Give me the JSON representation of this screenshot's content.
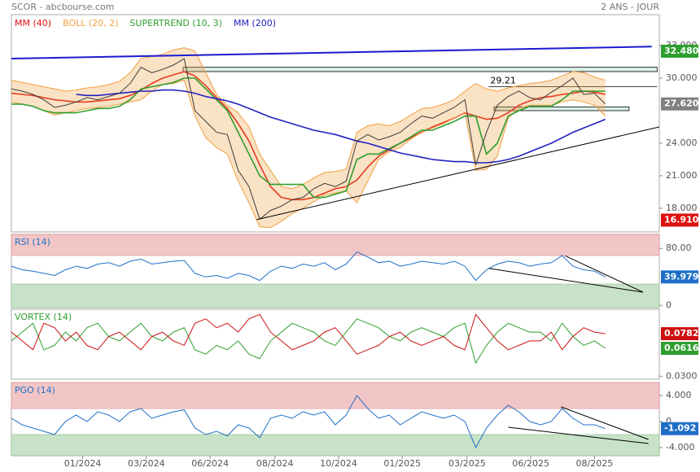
{
  "header": {
    "title": "SCOR - abcbourse.com",
    "period": "2 ANS - JOUR"
  },
  "chart_data": [
    {
      "type": "line",
      "xlim": [
        0,
        60
      ],
      "ylim": [
        15.82,
        35.85
      ],
      "x": [
        0,
        1,
        2,
        3,
        4,
        5,
        6,
        7,
        8,
        9,
        10,
        11,
        12,
        13,
        14,
        15,
        16,
        17,
        18,
        19,
        20,
        21,
        22,
        23,
        24,
        25,
        26,
        27,
        28,
        29,
        30,
        31,
        32,
        33,
        34,
        35,
        36,
        37,
        38,
        39,
        40,
        41,
        42,
        43,
        44,
        45,
        46,
        47,
        48,
        49,
        50,
        51,
        52,
        53,
        54,
        55
      ],
      "values": [
        29.0,
        28.8,
        28.5,
        28.0,
        27.3,
        27.5,
        27.8,
        28.2,
        28.0,
        28.3,
        28.6,
        29.5,
        31.0,
        30.5,
        30.8,
        31.2,
        31.8,
        27.0,
        26.0,
        25.0,
        24.8,
        21.5,
        20.0,
        17.0,
        17.8,
        18.2,
        18.8,
        19.0,
        19.8,
        20.3,
        20.0,
        20.5,
        24.2,
        24.8,
        24.3,
        24.6,
        25.0,
        25.8,
        26.5,
        26.3,
        26.8,
        27.3,
        28.0,
        22.0,
        25.0,
        27.5,
        28.3,
        28.8,
        28.2,
        28.0,
        28.7,
        29.3,
        30.0,
        28.5,
        28.6,
        27.62
      ],
      "color": "#3a3a3a",
      "series": [
        {
          "name": "MM (40)",
          "color": "#e01010",
          "values": [
            28.6,
            28.5,
            28.4,
            28.2,
            28.0,
            27.9,
            27.8,
            27.8,
            27.9,
            28.0,
            28.1,
            28.4,
            28.9,
            29.5,
            30.0,
            30.3,
            30.6,
            30.2,
            29.3,
            28.2,
            27.2,
            25.8,
            24.2,
            22.0,
            20.0,
            19.0,
            18.8,
            18.8,
            19.0,
            19.4,
            19.8,
            20.0,
            20.6,
            21.8,
            22.8,
            23.4,
            24.0,
            24.5,
            25.0,
            25.5,
            25.9,
            26.3,
            26.8,
            26.5,
            26.2,
            26.3,
            26.8,
            27.5,
            27.9,
            28.2,
            28.3,
            28.5,
            28.6,
            28.8,
            28.7,
            28.5
          ]
        },
        {
          "name": "BOLL (20, 2)",
          "color": "#f0a040",
          "upper": [
            29.8,
            29.6,
            29.4,
            29.2,
            29.0,
            28.8,
            28.9,
            29.1,
            29.2,
            29.4,
            29.7,
            30.5,
            31.8,
            32.0,
            32.2,
            32.6,
            32.8,
            32.5,
            30.5,
            28.5,
            27.5,
            26.8,
            25.5,
            23.0,
            21.5,
            20.0,
            19.8,
            20.2,
            20.8,
            21.3,
            21.4,
            21.6,
            25.0,
            25.6,
            25.8,
            25.6,
            26.0,
            26.6,
            27.2,
            27.3,
            27.6,
            28.0,
            28.8,
            29.5,
            29.0,
            28.8,
            29.1,
            29.3,
            29.5,
            29.6,
            29.8,
            30.2,
            30.6,
            30.5,
            30.1,
            29.8
          ],
          "lower": [
            27.8,
            27.6,
            27.4,
            27.0,
            26.6,
            26.8,
            27.0,
            27.2,
            27.3,
            27.4,
            27.6,
            27.8,
            28.0,
            28.8,
            29.4,
            29.5,
            29.8,
            26.5,
            24.5,
            23.6,
            23.0,
            20.5,
            18.5,
            16.3,
            16.2,
            16.8,
            17.5,
            18.0,
            18.6,
            19.2,
            19.4,
            19.6,
            18.5,
            20.5,
            22.5,
            23.2,
            23.6,
            24.4,
            25.0,
            25.4,
            25.8,
            26.3,
            26.8,
            21.5,
            21.6,
            22.8,
            26.3,
            27.2,
            27.5,
            27.5,
            27.5,
            27.8,
            28.0,
            27.8,
            27.5,
            26.5
          ]
        },
        {
          "name": "SUPERTREND (10, 3)",
          "color": "#2e9e2e",
          "values": [
            27.6,
            27.6,
            27.4,
            27.0,
            26.8,
            26.8,
            26.8,
            27.0,
            27.2,
            27.2,
            27.4,
            28.0,
            29.0,
            29.2,
            29.4,
            29.6,
            30.0,
            30.0,
            29.0,
            28.0,
            27.0,
            25.0,
            23.0,
            21.0,
            20.2,
            20.2,
            20.2,
            20.2,
            19.0,
            19.0,
            19.3,
            19.6,
            22.5,
            23.0,
            23.0,
            23.5,
            24.0,
            24.6,
            25.2,
            25.2,
            25.6,
            26.0,
            26.5,
            26.5,
            23.0,
            24.0,
            26.5,
            27.0,
            27.4,
            27.4,
            27.4,
            28.0,
            28.8,
            28.8,
            28.8,
            28.8
          ]
        },
        {
          "name": "MM (200)",
          "color": "#2020c0",
          "values": [
            null,
            null,
            null,
            null,
            null,
            null,
            28.5,
            28.4,
            28.4,
            28.5,
            28.6,
            28.7,
            28.8,
            28.8,
            28.9,
            28.9,
            28.8,
            28.6,
            28.3,
            28.1,
            27.9,
            27.6,
            27.2,
            26.8,
            26.4,
            26.1,
            25.8,
            25.5,
            25.2,
            25.0,
            24.8,
            24.5,
            24.2,
            24.0,
            23.7,
            23.4,
            23.1,
            22.9,
            22.7,
            22.5,
            22.4,
            22.3,
            22.3,
            22.2,
            22.2,
            22.3,
            22.5,
            22.8,
            23.2,
            23.6,
            24.0,
            24.5,
            25.0,
            25.4,
            25.8,
            26.2
          ]
        }
      ],
      "yticks": [
        {
          "value": 33,
          "label": "33.000"
        },
        {
          "value": 30,
          "label": "30.000"
        },
        {
          "value": 24,
          "label": "24.000"
        },
        {
          "value": 21,
          "label": "21.000"
        },
        {
          "value": 18,
          "label": "18.000"
        }
      ],
      "zones": [
        {
          "from": 30.6,
          "to": 31.0,
          "x": [
            15.9,
            59.8
          ],
          "color": "#d8f0e8"
        },
        {
          "from": 27.0,
          "to": 27.35,
          "x": [
            44.7,
            57.2
          ],
          "color": "#d8f0e8"
        }
      ],
      "levels": [
        {
          "value": 29.21,
          "x": [
            44.2,
            59.8
          ]
        }
      ],
      "lines": [
        {
          "x": [
            0,
            59.3
          ],
          "y": [
            31.8,
            32.9
          ],
          "color": "#1a1ad0",
          "width": 2
        },
        {
          "x": [
            22.7,
            60
          ],
          "y": [
            16.95,
            25.5
          ],
          "color": "#000000",
          "width": 1
        }
      ],
      "markers": [
        {
          "value": 32.48,
          "label": "32.480",
          "color": "#2e9e2e"
        },
        {
          "value": 27.62,
          "label": "27.620",
          "color": "#808080"
        },
        {
          "value": 16.91,
          "label": "16.910",
          "color": "#dd1010"
        }
      ]
    },
    {
      "type": "line",
      "title": "RSI (14)",
      "xlim": [
        0,
        60
      ],
      "ylim": [
        -3.1,
        99.7
      ],
      "overbought": 70,
      "oversold": 30,
      "color": "#1f6fc8",
      "x": [
        0,
        1,
        2,
        3,
        4,
        5,
        6,
        7,
        8,
        9,
        10,
        11,
        12,
        13,
        14,
        15,
        16,
        17,
        18,
        19,
        20,
        21,
        22,
        23,
        24,
        25,
        26,
        27,
        28,
        29,
        30,
        31,
        32,
        33,
        34,
        35,
        36,
        37,
        38,
        39,
        40,
        41,
        42,
        43,
        44,
        45,
        46,
        47,
        48,
        49,
        50,
        51,
        52,
        53,
        54,
        55
      ],
      "values": [
        55,
        50,
        48,
        45,
        42,
        50,
        55,
        52,
        58,
        60,
        55,
        62,
        65,
        58,
        60,
        62,
        63,
        45,
        40,
        42,
        38,
        45,
        42,
        35,
        48,
        55,
        52,
        58,
        55,
        60,
        50,
        58,
        75,
        68,
        60,
        62,
        55,
        58,
        62,
        60,
        58,
        62,
        55,
        35,
        50,
        58,
        62,
        60,
        55,
        58,
        60,
        70,
        55,
        50,
        48,
        39.979
      ],
      "yticks": [
        {
          "value": 80,
          "label": "80.00"
        },
        0
      ],
      "lines": [
        {
          "x": [
            44.2,
            58.5
          ],
          "y": [
            52,
            18.5
          ],
          "color": "#000000",
          "width": 1
        },
        {
          "x": [
            51.3,
            58.5
          ],
          "y": [
            69.6,
            18.5
          ],
          "color": "#000000",
          "width": 1
        }
      ],
      "markers": [
        {
          "value": 39.979,
          "color": "#1f6fc8"
        }
      ]
    },
    {
      "type": "line",
      "title": "VORTEX (14)",
      "xlim": [
        0,
        60
      ],
      "ylim": [
        0.0266,
        0.1059
      ],
      "x": [
        0,
        1,
        2,
        3,
        4,
        5,
        6,
        7,
        8,
        9,
        10,
        11,
        12,
        13,
        14,
        15,
        16,
        17,
        18,
        19,
        20,
        21,
        22,
        23,
        24,
        25,
        26,
        27,
        28,
        29,
        30,
        31,
        32,
        33,
        34,
        35,
        36,
        37,
        38,
        39,
        40,
        41,
        42,
        43,
        44,
        45,
        46,
        47,
        48,
        49,
        50,
        51,
        52,
        53,
        54,
        55
      ],
      "series": [
        {
          "color": "#2e9e2e",
          "values": [
            0.07,
            0.08,
            0.09,
            0.06,
            0.065,
            0.08,
            0.07,
            0.085,
            0.09,
            0.075,
            0.07,
            0.08,
            0.09,
            0.075,
            0.07,
            0.08,
            0.085,
            0.06,
            0.055,
            0.065,
            0.06,
            0.07,
            0.055,
            0.05,
            0.07,
            0.08,
            0.09,
            0.085,
            0.08,
            0.07,
            0.065,
            0.08,
            0.095,
            0.09,
            0.085,
            0.075,
            0.07,
            0.08,
            0.085,
            0.08,
            0.075,
            0.085,
            0.09,
            0.045,
            0.065,
            0.08,
            0.09,
            0.085,
            0.08,
            0.08,
            0.07,
            0.09,
            0.075,
            0.065,
            0.07,
            0.0616
          ]
        },
        {
          "color": "#cc1010",
          "values": [
            0.08,
            0.07,
            0.06,
            0.09,
            0.085,
            0.07,
            0.08,
            0.065,
            0.06,
            0.075,
            0.08,
            0.07,
            0.06,
            0.075,
            0.08,
            0.07,
            0.065,
            0.09,
            0.095,
            0.085,
            0.09,
            0.08,
            0.095,
            0.1,
            0.08,
            0.07,
            0.06,
            0.065,
            0.07,
            0.08,
            0.085,
            0.07,
            0.055,
            0.06,
            0.065,
            0.075,
            0.08,
            0.07,
            0.065,
            0.07,
            0.075,
            0.065,
            0.06,
            0.1,
            0.085,
            0.07,
            0.06,
            0.065,
            0.07,
            0.07,
            0.08,
            0.06,
            0.075,
            0.085,
            0.08,
            0.0782
          ]
        }
      ],
      "yticks": [
        {
          "value": 0.03,
          "label": "0.0300"
        }
      ],
      "markers": [
        {
          "value": 0.0782,
          "color": "#cc1010"
        },
        {
          "value": 0.0616,
          "color": "#2e9e2e"
        }
      ]
    },
    {
      "type": "line",
      "title": "PGO (14)",
      "xlim": [
        0,
        60
      ],
      "ylim": [
        -5.25,
        6
      ],
      "overbought": 2,
      "oversold": -2,
      "color": "#1f6fc8",
      "x": [
        0,
        1,
        2,
        3,
        4,
        5,
        6,
        7,
        8,
        9,
        10,
        11,
        12,
        13,
        14,
        15,
        16,
        17,
        18,
        19,
        20,
        21,
        22,
        23,
        24,
        25,
        26,
        27,
        28,
        29,
        30,
        31,
        32,
        33,
        34,
        35,
        36,
        37,
        38,
        39,
        40,
        41,
        42,
        43,
        44,
        45,
        46,
        47,
        48,
        49,
        50,
        51,
        52,
        53,
        54,
        55
      ],
      "values": [
        0.5,
        -0.5,
        -1,
        -1.5,
        -2,
        0,
        1,
        0,
        1.5,
        1,
        0,
        1.5,
        2,
        0.5,
        1,
        1.5,
        1.8,
        -1,
        -2,
        -1.5,
        -2.2,
        -0.5,
        -1,
        -2.5,
        0.5,
        1,
        0.5,
        1.5,
        1,
        1.5,
        -0.5,
        1,
        4,
        2,
        0.5,
        1,
        -0.5,
        0.5,
        1.5,
        1,
        0.5,
        1,
        0,
        -4,
        -1,
        1,
        2.5,
        1.5,
        0,
        -0.5,
        0,
        2,
        0.5,
        -0.5,
        -0.5,
        -1.092
      ],
      "yticks": [
        {
          "value": 4,
          "label": "4.000"
        },
        0,
        {
          "value": -4,
          "label": "-4.000"
        }
      ],
      "lines": [
        {
          "x": [
            46.0,
            59.0
          ],
          "y": [
            -0.875,
            -3.375
          ],
          "color": "#000000",
          "width": 1
        },
        {
          "x": [
            50.9,
            59.0
          ],
          "y": [
            2.25,
            -2.75
          ],
          "color": "#000000",
          "width": 1
        }
      ],
      "markers": [
        {
          "value": -1.092,
          "color": "#1f6fc8"
        }
      ],
      "xticks": [
        {
          "value": 6.6,
          "label": "01/2024"
        },
        {
          "value": 12.5,
          "label": "03/2024"
        },
        {
          "value": 18.4,
          "label": "06/2024"
        },
        {
          "value": 24.4,
          "label": "08/2024"
        },
        {
          "value": 30.3,
          "label": "10/2024"
        },
        {
          "value": 36.2,
          "label": "01/2025"
        },
        {
          "value": 42.2,
          "label": "03/2025"
        },
        {
          "value": 48.1,
          "label": "06/2025"
        },
        {
          "value": 54.0,
          "label": "08/2025"
        }
      ]
    }
  ]
}
